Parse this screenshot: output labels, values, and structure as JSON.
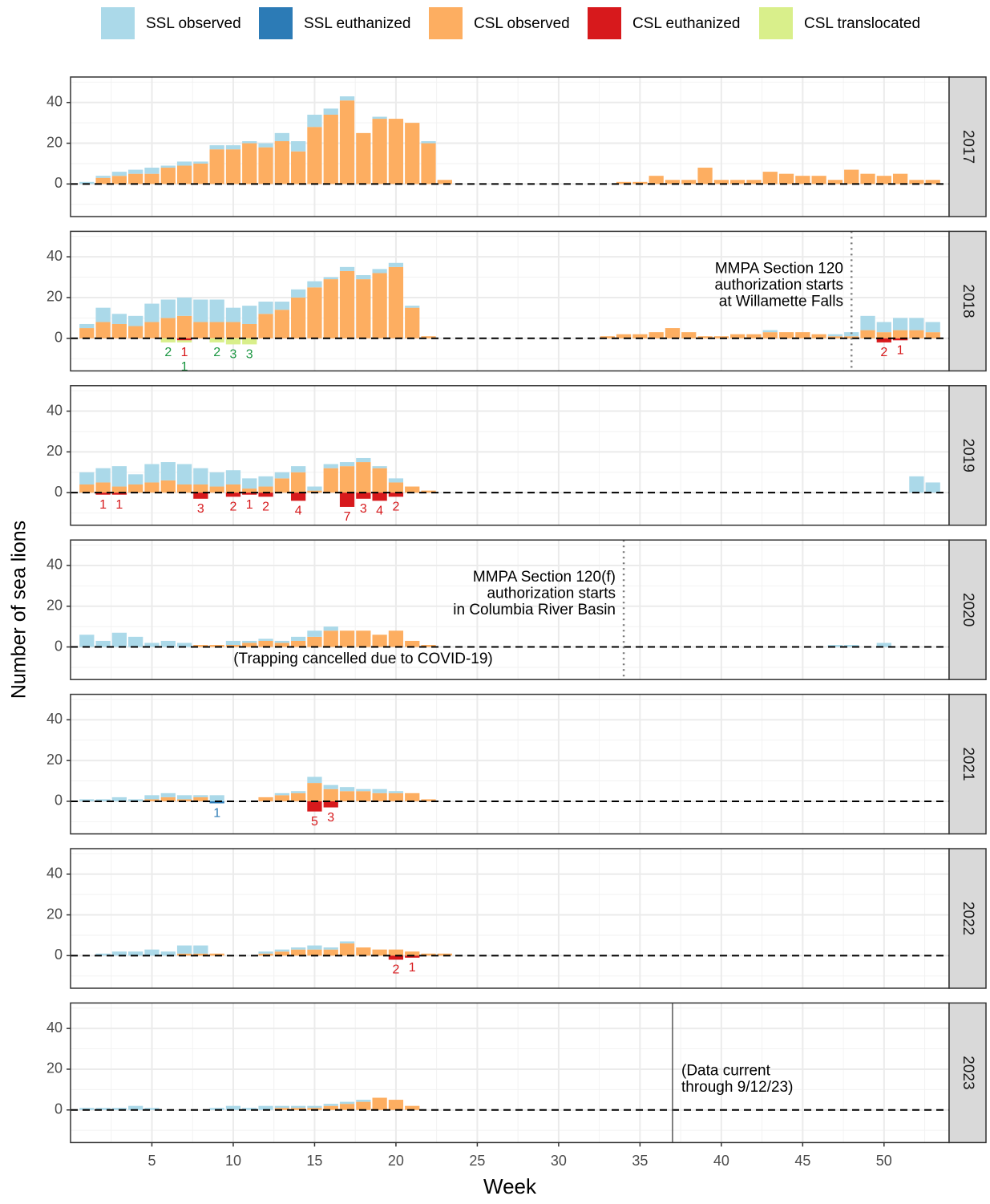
{
  "chart_data": {
    "type": "faceted_stacked_bar",
    "x_label": "Week",
    "y_label": "Number of sea lions",
    "xlim": [
      0,
      54
    ],
    "xticks": [
      5,
      10,
      15,
      20,
      25,
      30,
      35,
      40,
      45,
      50
    ],
    "minor_xticks": [
      2.5,
      7.5,
      12.5,
      17.5,
      22.5,
      27.5,
      32.5,
      37.5,
      42.5,
      47.5,
      52.5
    ],
    "ylim": [
      -16,
      52.5
    ],
    "yticks": [
      0,
      20,
      40
    ],
    "minor_yticks": [
      -10,
      10,
      30,
      50
    ],
    "grid": true,
    "legend": "top",
    "series": [
      {
        "name": "SSL observed",
        "color": "#abd9e9"
      },
      {
        "name": "SSL euthanized",
        "color": "#2c7bb6"
      },
      {
        "name": "CSL observed",
        "color": "#fdae61"
      },
      {
        "name": "CSL euthanized",
        "color": "#d7191c"
      },
      {
        "name": "CSL translocated",
        "color": "#d9ef8b"
      }
    ],
    "facets": [
      {
        "label": "2017",
        "series": [
          {
            "x": [
              1,
              2,
              3,
              4,
              5,
              6,
              7,
              8,
              9,
              10,
              11,
              12,
              13,
              14,
              15,
              16,
              17,
              19,
              22
            ],
            "values": [
              1,
              1,
              2,
              2,
              3,
              1,
              2,
              1,
              2,
              2,
              1,
              2,
              4,
              5,
              6,
              3,
              2,
              1,
              1
            ]
          },
          {
            "x": [],
            "values": []
          },
          {
            "x": [
              2,
              3,
              4,
              5,
              6,
              7,
              8,
              9,
              10,
              11,
              12,
              13,
              14,
              15,
              16,
              17,
              18,
              19,
              20,
              21,
              22,
              23,
              34,
              35,
              36,
              37,
              38,
              39,
              40,
              41,
              42,
              43,
              44,
              45,
              46,
              47,
              48,
              49,
              50,
              51,
              52,
              53
            ],
            "values": [
              3,
              4,
              5,
              5,
              8,
              9,
              10,
              17,
              17,
              20,
              18,
              21,
              16,
              28,
              34,
              41,
              25,
              32,
              32,
              30,
              20,
              2,
              1,
              1,
              4,
              2,
              2,
              8,
              2,
              2,
              2,
              6,
              5,
              4,
              4,
              2,
              7,
              5,
              4,
              5,
              2,
              2
            ]
          },
          {
            "x": [],
            "values": []
          },
          {
            "x": [],
            "values": []
          }
        ]
      },
      {
        "label": "2018",
        "series": [
          {
            "x": [
              1,
              2,
              3,
              4,
              5,
              6,
              7,
              8,
              9,
              10,
              11,
              12,
              13,
              14,
              15,
              16,
              17,
              18,
              19,
              20,
              21,
              43,
              47,
              48,
              49,
              50,
              51,
              52,
              53
            ],
            "values": [
              2,
              7,
              5,
              5,
              9,
              9,
              9,
              11,
              11,
              7,
              9,
              6,
              4,
              4,
              3,
              1,
              2,
              2,
              2,
              2,
              1,
              1,
              1,
              2,
              7,
              5,
              6,
              6,
              5
            ]
          },
          {
            "x": [],
            "values": []
          },
          {
            "x": [
              1,
              2,
              3,
              4,
              5,
              6,
              7,
              8,
              9,
              10,
              11,
              12,
              13,
              14,
              15,
              16,
              17,
              18,
              19,
              20,
              21,
              22,
              33,
              34,
              35,
              36,
              37,
              38,
              39,
              40,
              41,
              42,
              43,
              44,
              45,
              46,
              47,
              48,
              49,
              50,
              51,
              52,
              53
            ],
            "values": [
              5,
              8,
              7,
              6,
              8,
              10,
              11,
              8,
              8,
              8,
              7,
              12,
              14,
              20,
              25,
              29,
              33,
              29,
              32,
              35,
              15,
              1,
              1,
              2,
              2,
              3,
              5,
              3,
              1,
              1,
              2,
              2,
              3,
              3,
              3,
              2,
              1,
              1,
              4,
              3,
              4,
              4,
              3
            ]
          },
          {
            "x": [
              7,
              50,
              51
            ],
            "values": [
              1,
              2,
              1
            ]
          },
          {
            "x": [
              6,
              7,
              9,
              10,
              11
            ],
            "values": [
              2,
              1,
              2,
              3,
              3
            ]
          }
        ],
        "vline": {
          "x": 48,
          "style": "dotted"
        },
        "annotations": [
          [
            "MMPA Section 120",
            "authorization starts",
            "at Willamette Falls"
          ]
        ]
      },
      {
        "label": "2019",
        "series": [
          {
            "x": [
              1,
              2,
              3,
              4,
              5,
              6,
              7,
              8,
              9,
              10,
              11,
              12,
              13,
              14,
              15,
              16,
              17,
              18,
              19,
              20,
              52,
              53
            ],
            "values": [
              6,
              7,
              10,
              5,
              9,
              9,
              10,
              8,
              7,
              7,
              5,
              5,
              3,
              3,
              2,
              2,
              2,
              2,
              1,
              2,
              8,
              5
            ]
          },
          {
            "x": [],
            "values": []
          },
          {
            "x": [
              1,
              2,
              3,
              4,
              5,
              6,
              7,
              8,
              9,
              10,
              11,
              12,
              13,
              14,
              15,
              16,
              17,
              18,
              19,
              20,
              21,
              22
            ],
            "values": [
              4,
              5,
              3,
              4,
              5,
              6,
              4,
              4,
              3,
              4,
              2,
              3,
              7,
              10,
              1,
              12,
              13,
              15,
              12,
              5,
              3,
              1
            ]
          },
          {
            "x": [
              2,
              3,
              8,
              10,
              11,
              12,
              14,
              17,
              18,
              19,
              20
            ],
            "values": [
              1,
              1,
              3,
              2,
              1,
              2,
              4,
              7,
              3,
              4,
              2
            ]
          },
          {
            "x": [],
            "values": []
          }
        ]
      },
      {
        "label": "2020",
        "series": [
          {
            "x": [
              1,
              2,
              3,
              4,
              5,
              6,
              7,
              10,
              11,
              12,
              13,
              14,
              15,
              16,
              47,
              48,
              50
            ],
            "values": [
              6,
              3,
              7,
              5,
              2,
              3,
              2,
              2,
              1,
              1,
              1,
              2,
              3,
              2,
              1,
              1,
              2
            ]
          },
          {
            "x": [],
            "values": []
          },
          {
            "x": [
              8,
              9,
              10,
              11,
              12,
              13,
              14,
              15,
              16,
              17,
              18,
              19,
              20,
              21,
              22
            ],
            "values": [
              1,
              1,
              1,
              2,
              3,
              2,
              3,
              5,
              8,
              8,
              8,
              6,
              8,
              3,
              1
            ]
          },
          {
            "x": [],
            "values": []
          },
          {
            "x": [],
            "values": []
          }
        ],
        "vline": {
          "x": 34,
          "style": "dotted"
        },
        "annotations": [
          [
            "MMPA Section 120(f)",
            "authorization starts",
            "in Columbia River Basin"
          ],
          [
            "(Trapping cancelled due to COVID-19)"
          ]
        ]
      },
      {
        "label": "2021",
        "series": [
          {
            "x": [
              1,
              2,
              3,
              4,
              5,
              6,
              7,
              8,
              9,
              13,
              14,
              15,
              16,
              17,
              18,
              19,
              20
            ],
            "values": [
              1,
              1,
              2,
              1,
              2,
              2,
              2,
              1,
              3,
              1,
              1,
              3,
              2,
              2,
              1,
              2,
              1
            ]
          },
          {
            "x": [
              9
            ],
            "values": [
              1
            ]
          },
          {
            "x": [
              5,
              6,
              7,
              8,
              12,
              13,
              14,
              15,
              16,
              17,
              18,
              19,
              20,
              21,
              22
            ],
            "values": [
              1,
              2,
              1,
              2,
              2,
              3,
              4,
              9,
              6,
              5,
              5,
              4,
              4,
              4,
              1
            ]
          },
          {
            "x": [
              15,
              16
            ],
            "values": [
              5,
              3
            ]
          },
          {
            "x": [],
            "values": []
          }
        ]
      },
      {
        "label": "2022",
        "series": [
          {
            "x": [
              2,
              3,
              4,
              5,
              6,
              7,
              8,
              12,
              13,
              14,
              15,
              16,
              17
            ],
            "values": [
              1,
              2,
              2,
              3,
              2,
              4,
              4,
              1,
              1,
              1,
              2,
              1,
              1
            ]
          },
          {
            "x": [],
            "values": []
          },
          {
            "x": [
              7,
              8,
              9,
              12,
              13,
              14,
              15,
              16,
              17,
              18,
              19,
              20,
              21,
              22,
              23
            ],
            "values": [
              1,
              1,
              1,
              1,
              2,
              3,
              3,
              3,
              6,
              4,
              3,
              3,
              2,
              1,
              1
            ]
          },
          {
            "x": [
              20,
              21
            ],
            "values": [
              2,
              1
            ]
          },
          {
            "x": [],
            "values": []
          }
        ]
      },
      {
        "label": "2023",
        "series": [
          {
            "x": [
              1,
              2,
              3,
              4,
              5,
              9,
              10,
              11,
              12,
              13,
              14,
              15,
              16,
              17,
              18
            ],
            "values": [
              1,
              1,
              1,
              2,
              1,
              1,
              2,
              1,
              2,
              1,
              1,
              1,
              1,
              1,
              1
            ]
          },
          {
            "x": [],
            "values": []
          },
          {
            "x": [
              13,
              14,
              15,
              16,
              17,
              18,
              19,
              20,
              21
            ],
            "values": [
              1,
              1,
              1,
              2,
              3,
              4,
              6,
              5,
              2
            ]
          },
          {
            "x": [],
            "values": []
          },
          {
            "x": [],
            "values": []
          }
        ],
        "vline": {
          "x": 37,
          "style": "solid"
        },
        "annotations": [
          [
            "(Data current",
            "through 9/12/23)"
          ]
        ]
      }
    ]
  }
}
